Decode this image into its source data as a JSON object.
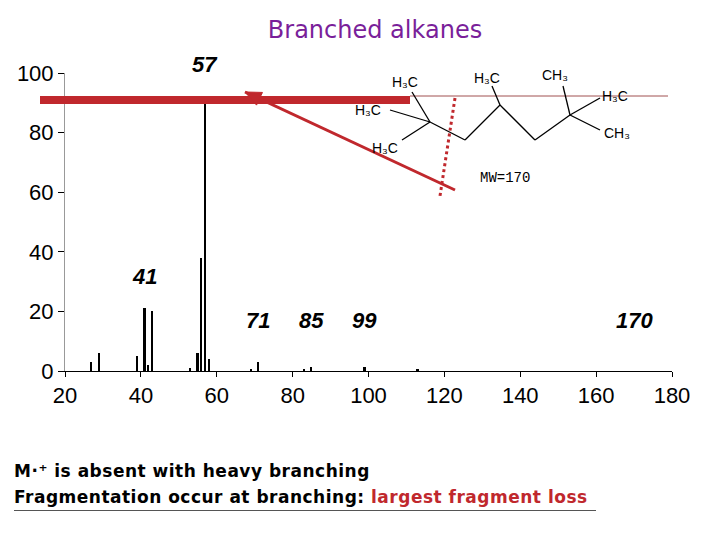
{
  "chart_data": {
    "type": "bar",
    "title": "Branched alkanes",
    "x": [
      27,
      29,
      39,
      41,
      42,
      43,
      53,
      55,
      56,
      57,
      58,
      69,
      71,
      83,
      85,
      99,
      113
    ],
    "values": [
      3,
      6,
      5,
      21,
      2,
      20,
      1,
      6,
      38,
      92,
      4,
      0.5,
      3,
      0.5,
      1.5,
      1.5,
      0.5
    ],
    "color": "#000000",
    "xlim": [
      20,
      180
    ],
    "xticks": [
      20,
      40,
      60,
      80,
      100,
      120,
      140,
      160,
      180
    ],
    "ylim": [
      0,
      100
    ],
    "yticks": [
      0,
      20,
      40,
      60,
      80,
      100
    ],
    "grid": false,
    "annotations": [
      {
        "text": "57",
        "x": 57
      },
      {
        "text": "41",
        "x": 41
      },
      {
        "text": "71",
        "x": 71
      },
      {
        "text": "85",
        "x": 85
      },
      {
        "text": "99",
        "x": 99
      },
      {
        "text": "170",
        "x": 170
      }
    ],
    "structure": {
      "labels": [
        "H₃C",
        "H₃C",
        "H₃C",
        "H₃C",
        "CH₃",
        "H₃C",
        "CH₃"
      ],
      "note": "MW=170"
    },
    "caption": {
      "line1": "M·⁺ is absent with heavy branching",
      "line2": "Fragmentation occur at branching: ",
      "line2_highlight": "largest fragment loss"
    }
  }
}
